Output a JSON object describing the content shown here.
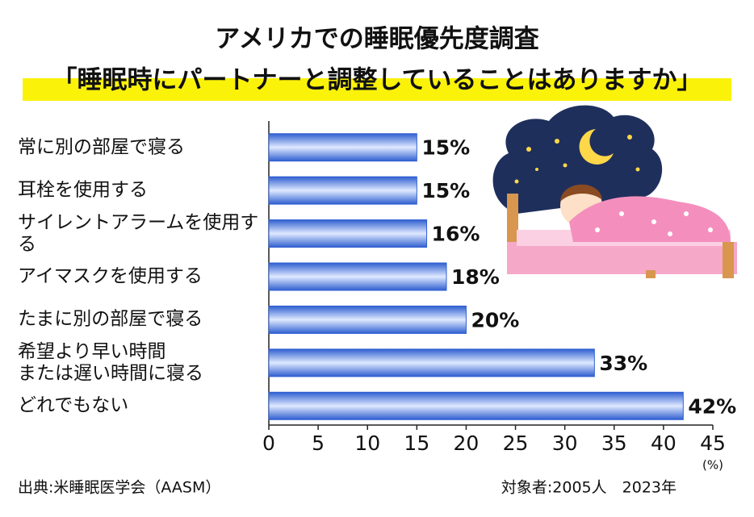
{
  "chart_data": {
    "type": "barh",
    "title": "アメリカでの睡眠優先度調査",
    "subtitle": "「睡眠時にパートナーと調整していることはありますか」",
    "categories": [
      "常に別の部屋で寝る",
      "耳栓を使用する",
      "サイレントアラームを使用する",
      "アイマスクを使用する",
      "たまに別の部屋で寝る",
      "希望より早い時間\nまたは遅い時間に寝る",
      "どれでもない"
    ],
    "values": [
      15,
      15,
      16,
      18,
      20,
      33,
      42
    ],
    "value_labels": [
      "15%",
      "15%",
      "16%",
      "18%",
      "20%",
      "33%",
      "42%"
    ],
    "color": "#2f5fd0",
    "xlim": [
      0,
      45
    ],
    "xticks": [
      0,
      5,
      10,
      15,
      20,
      25,
      30,
      35,
      40,
      45
    ],
    "x_unit": "(%)",
    "source": "出典:米睡眠医学会（AASM）",
    "note": "対象者:2005人　2023年"
  }
}
